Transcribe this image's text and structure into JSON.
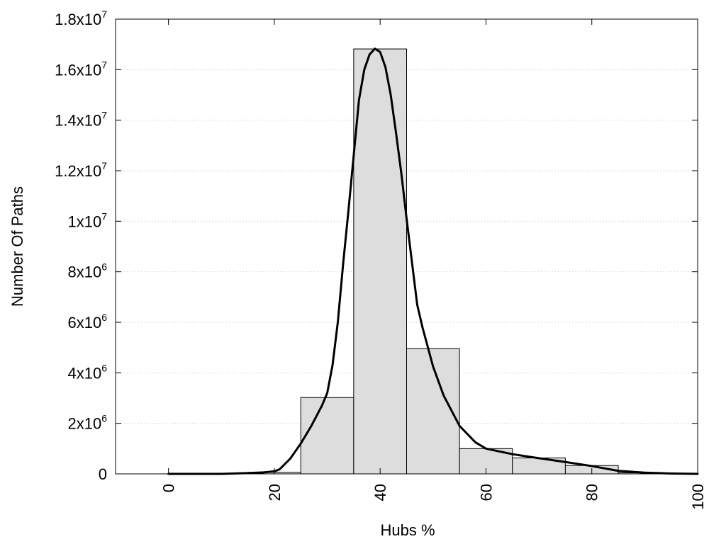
{
  "chart_data": {
    "type": "bar",
    "title": "",
    "xlabel": "Hubs %",
    "ylabel": "Number Of Paths",
    "xlim": [
      -10,
      100
    ],
    "ylim": [
      0,
      18000000
    ],
    "x_ticks": [
      {
        "value": 0,
        "label": "0"
      },
      {
        "value": 20,
        "label": "20"
      },
      {
        "value": 40,
        "label": "40"
      },
      {
        "value": 60,
        "label": "60"
      },
      {
        "value": 80,
        "label": "80"
      },
      {
        "value": 100,
        "label": "100"
      }
    ],
    "y_ticks": [
      {
        "value": 0,
        "mantissa": "0",
        "exp": ""
      },
      {
        "value": 2000000,
        "mantissa": "2x10",
        "exp": "6"
      },
      {
        "value": 4000000,
        "mantissa": "4x10",
        "exp": "6"
      },
      {
        "value": 6000000,
        "mantissa": "6x10",
        "exp": "6"
      },
      {
        "value": 8000000,
        "mantissa": "8x10",
        "exp": "6"
      },
      {
        "value": 10000000,
        "mantissa": "1x10",
        "exp": "7"
      },
      {
        "value": 12000000,
        "mantissa": "1.2x10",
        "exp": "7"
      },
      {
        "value": 14000000,
        "mantissa": "1.4x10",
        "exp": "7"
      },
      {
        "value": 16000000,
        "mantissa": "1.6x10",
        "exp": "7"
      },
      {
        "value": 18000000,
        "mantissa": "1.8x10",
        "exp": "7"
      }
    ],
    "bar_width": 10,
    "bars": [
      {
        "x": 0,
        "value": 0
      },
      {
        "x": 10,
        "value": 0
      },
      {
        "x": 20,
        "value": 60000
      },
      {
        "x": 30,
        "value": 3020000
      },
      {
        "x": 40,
        "value": 16820000
      },
      {
        "x": 50,
        "value": 4960000
      },
      {
        "x": 60,
        "value": 1000000
      },
      {
        "x": 70,
        "value": 630000
      },
      {
        "x": 80,
        "value": 330000
      },
      {
        "x": 90,
        "value": 40000
      }
    ],
    "curve": {
      "x": [
        0,
        10,
        15,
        18,
        20,
        21,
        23,
        25,
        27,
        29,
        30,
        31,
        32,
        33,
        34,
        35,
        36,
        37,
        38,
        39,
        40,
        41,
        42,
        43,
        44,
        45,
        46,
        47,
        48,
        50,
        52,
        55,
        58,
        60,
        65,
        70,
        75,
        80,
        85,
        90,
        95,
        100
      ],
      "y": [
        0,
        0,
        30000,
        60000,
        100000,
        180000,
        600000,
        1200000,
        1900000,
        2700000,
        3200000,
        4300000,
        6000000,
        8300000,
        10400000,
        12600000,
        14800000,
        16000000,
        16600000,
        16830000,
        16700000,
        16100000,
        15000000,
        13500000,
        11900000,
        10100000,
        8400000,
        6700000,
        5800000,
        4250000,
        3100000,
        1900000,
        1250000,
        1000000,
        780000,
        620000,
        470000,
        310000,
        120000,
        50000,
        15000,
        0
      ]
    },
    "grid": true,
    "grid_axis": "y",
    "legend": "none",
    "colors": {
      "bar_fill": "#dddddd",
      "bar_stroke": "#000000",
      "curve": "#000000",
      "grid": "#c8c8c8"
    }
  }
}
